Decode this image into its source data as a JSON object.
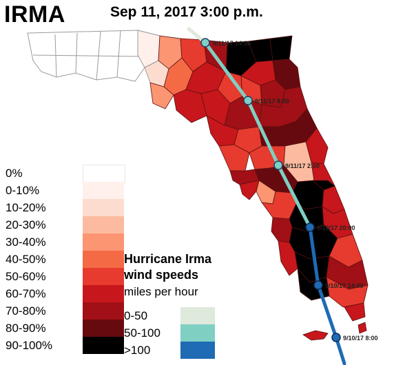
{
  "header": {
    "title": "IRMA",
    "datetime": "Sep 11, 2017  3:00 p.m."
  },
  "percent_legend": [
    {
      "label": "0%",
      "color": "#ffffff"
    },
    {
      "label": "0-10%",
      "color": "#fff0ec"
    },
    {
      "label": "10-20%",
      "color": "#fddcd0"
    },
    {
      "label": "20-30%",
      "color": "#fcbba0"
    },
    {
      "label": "30-40%",
      "color": "#fb9572"
    },
    {
      "label": "40-50%",
      "color": "#f46a45"
    },
    {
      "label": "50-60%",
      "color": "#e63b2e"
    },
    {
      "label": "60-70%",
      "color": "#c7171c"
    },
    {
      "label": "70-80%",
      "color": "#a01016"
    },
    {
      "label": "80-90%",
      "color": "#670a0f"
    },
    {
      "label": "90-100%",
      "color": "#000000"
    }
  ],
  "wind_legend": {
    "title_line1": "Hurricane Irma",
    "title_line2": "wind speeds",
    "units": "miles per hour",
    "items": [
      {
        "label": "0-50",
        "color": "#dfe9dc"
      },
      {
        "label": "50-100",
        "color": "#7fcfc3"
      },
      {
        "label": ">100",
        "color": "#1f6bb4"
      }
    ]
  },
  "track_points": [
    {
      "label": "9/11/17 14:00",
      "speed": "0-50"
    },
    {
      "label": "9/11/17 8:00",
      "speed": "50-100"
    },
    {
      "label": "9/11/17 2:00",
      "speed": "50-100"
    },
    {
      "label": "9/10/17 20:00",
      "speed": ">100"
    },
    {
      "label": "9/10/17 14:00",
      "speed": ">100"
    },
    {
      "label": "9/10/17 8:00",
      "speed": ">100"
    }
  ]
}
